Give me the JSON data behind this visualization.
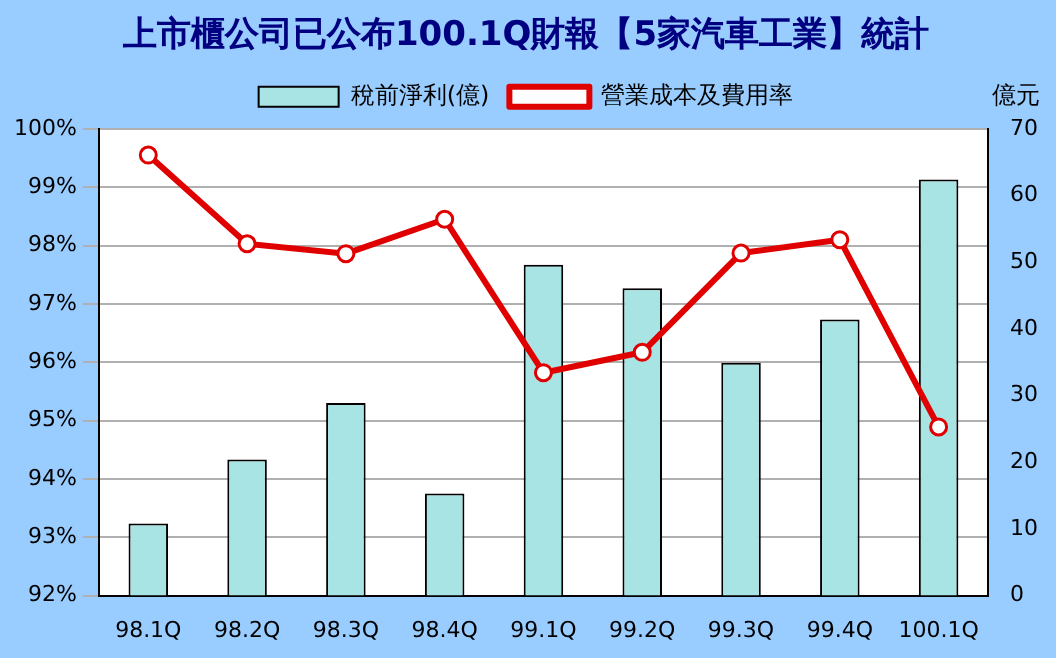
{
  "chart_data": {
    "type": "bar",
    "title": "上市櫃公司已公布100.1Q財報【5家汽車工業】統計",
    "y2label": "億元",
    "categories": [
      "98.1Q",
      "98.2Q",
      "98.3Q",
      "98.4Q",
      "99.1Q",
      "99.2Q",
      "99.3Q",
      "99.4Q",
      "100.1Q"
    ],
    "series": [
      {
        "name": "稅前淨利(億)",
        "axis": "y2",
        "color": "#a8e4e4",
        "values": [
          10.8,
          20.4,
          28.9,
          15.3,
          49.6,
          46.1,
          34.9,
          41.4,
          62.4
        ]
      },
      {
        "name": "營業成本及費用率",
        "type": "line",
        "axis": "y",
        "color": "#e00000",
        "values": [
          99.55,
          98.03,
          97.86,
          98.45,
          95.82,
          96.17,
          97.87,
          98.1,
          94.89
        ]
      }
    ],
    "ylim": [
      92,
      100
    ],
    "yticks": [
      {
        "value": 92,
        "label": "92%"
      },
      {
        "value": 93,
        "label": "93%"
      },
      {
        "value": 94,
        "label": "94%"
      },
      {
        "value": 95,
        "label": "95%"
      },
      {
        "value": 96,
        "label": "96%"
      },
      {
        "value": 97,
        "label": "97%"
      },
      {
        "value": 98,
        "label": "98%"
      },
      {
        "value": 99,
        "label": "99%"
      },
      {
        "value": 100,
        "label": "100%"
      }
    ],
    "y2lim": [
      0,
      70
    ],
    "y2ticks": [
      0,
      10,
      20,
      30,
      40,
      50,
      60,
      70
    ],
    "grid": "y",
    "legend": "top",
    "marker": "circle",
    "line_style": "solid"
  }
}
